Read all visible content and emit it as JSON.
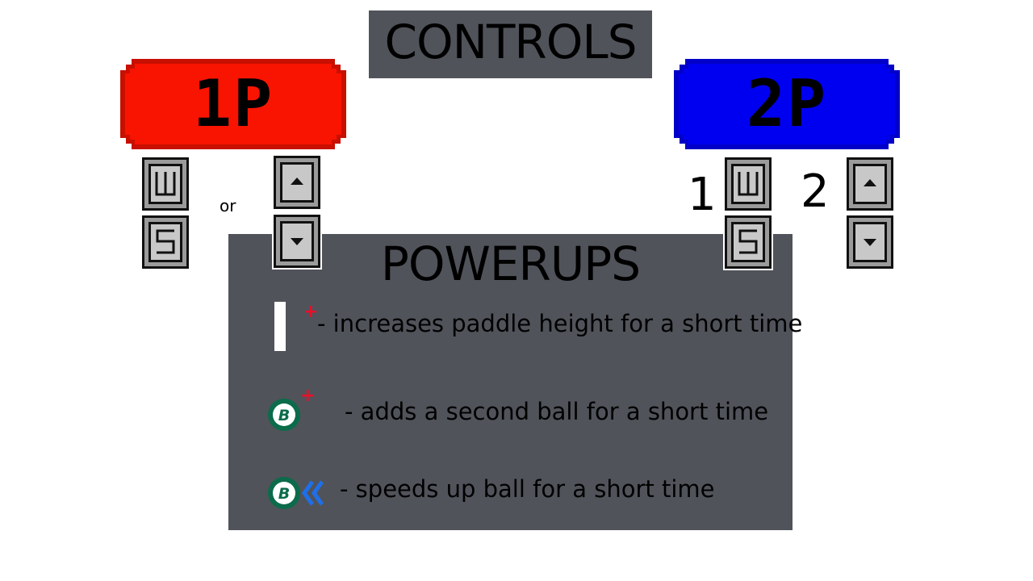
{
  "header": {
    "title": "CONTROLS"
  },
  "player1": {
    "label": "1P",
    "color": "#f81400",
    "keys_left": [
      "W",
      "S"
    ],
    "keys_right": [
      "up-arrow",
      "down-arrow"
    ],
    "separator": "or"
  },
  "player2": {
    "label": "2P",
    "color": "#0000f0",
    "keys_left": [
      "W",
      "S"
    ],
    "keys_right": [
      "up-arrow",
      "down-arrow"
    ],
    "number_left": "1",
    "number_right": "2"
  },
  "powerups": {
    "title": "POWERUPS",
    "items": [
      {
        "icon": "paddle-plus-icon",
        "text": "- increases paddle height for a short time"
      },
      {
        "icon": "ball-plus-icon",
        "text": "- adds a second ball for a short time"
      },
      {
        "icon": "ball-speed-icon",
        "text": "- speeds up ball for a short time"
      }
    ],
    "colors": {
      "plus": "#e8102a",
      "speed": "#1e6fe8",
      "ball": "#0b6b4a"
    }
  }
}
